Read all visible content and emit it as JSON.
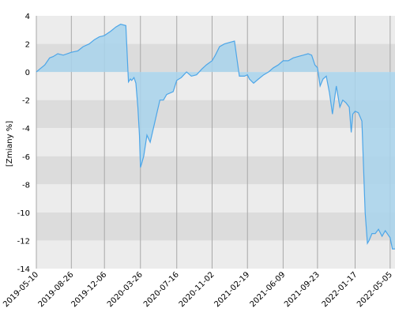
{
  "chart_data": {
    "type": "area",
    "ylabel": "[Zmiany %]",
    "ylim": [
      -14,
      4
    ],
    "y_ticks": [
      4,
      2,
      0,
      -2,
      -4,
      -6,
      -8,
      -10,
      -12,
      -14
    ],
    "x_ticks": [
      "2019-05-10",
      "2019-08-26",
      "2019-12-06",
      "2020-03-26",
      "2020-07-16",
      "2020-11-02",
      "2021-02-19",
      "2021-06-09",
      "2021-09-23",
      "2022-01-17",
      "2022-05-05"
    ],
    "xlim": [
      "2019-05-10",
      "2022-05-20"
    ],
    "grid": true,
    "colors": {
      "line": "#4da6e8",
      "fill": "#a8d4ec",
      "band_dark": "#dcdcdc",
      "band_light": "#ececec",
      "vgrid": "#a8a8a8"
    },
    "series": [
      {
        "x": [
          "2019-05-10",
          "2019-05-20",
          "2019-06-05",
          "2019-06-20",
          "2019-07-01",
          "2019-07-15",
          "2019-08-01",
          "2019-08-26",
          "2019-09-15",
          "2019-10-01",
          "2019-10-20",
          "2019-11-05",
          "2019-11-20",
          "2019-12-06",
          "2019-12-25",
          "2020-01-10",
          "2020-01-25",
          "2020-02-10",
          "2020-02-18",
          "2020-02-24",
          "2020-02-28",
          "2020-03-06",
          "2020-03-12",
          "2020-03-18",
          "2020-03-23",
          "2020-03-26",
          "2020-03-30",
          "2020-04-05",
          "2020-04-15",
          "2020-04-25",
          "2020-05-05",
          "2020-05-15",
          "2020-05-25",
          "2020-06-05",
          "2020-06-15",
          "2020-06-25",
          "2020-07-05",
          "2020-07-16",
          "2020-07-30",
          "2020-08-15",
          "2020-08-30",
          "2020-09-15",
          "2020-10-01",
          "2020-10-15",
          "2020-11-02",
          "2020-11-12",
          "2020-11-25",
          "2020-12-10",
          "2020-12-25",
          "2021-01-10",
          "2021-01-25",
          "2021-02-10",
          "2021-02-19",
          "2021-02-25",
          "2021-03-10",
          "2021-03-25",
          "2021-04-10",
          "2021-04-25",
          "2021-05-10",
          "2021-05-25",
          "2021-06-09",
          "2021-06-25",
          "2021-07-10",
          "2021-07-25",
          "2021-08-10",
          "2021-08-25",
          "2021-09-05",
          "2021-09-15",
          "2021-09-23",
          "2021-10-01",
          "2021-10-10",
          "2021-10-20",
          "2021-10-30",
          "2021-11-08",
          "2021-11-20",
          "2021-12-01",
          "2021-12-10",
          "2021-12-20",
          "2021-12-30",
          "2022-01-05",
          "2022-01-10",
          "2022-01-17",
          "2022-01-27",
          "2022-02-07",
          "2022-02-17",
          "2022-02-24",
          "2022-03-01",
          "2022-03-10",
          "2022-03-20",
          "2022-03-30",
          "2022-04-10",
          "2022-04-20",
          "2022-05-05",
          "2022-05-12",
          "2022-05-20"
        ],
        "values": [
          0,
          0.2,
          0.5,
          1.0,
          1.1,
          1.3,
          1.2,
          1.4,
          1.5,
          1.8,
          2.0,
          2.3,
          2.5,
          2.6,
          2.9,
          3.2,
          3.4,
          3.3,
          -0.7,
          -0.5,
          -0.6,
          -0.4,
          -0.8,
          -2.5,
          -4.5,
          -6.8,
          -6.5,
          -6.0,
          -4.5,
          -5.0,
          -4.0,
          -3.0,
          -2.0,
          -2.0,
          -1.6,
          -1.5,
          -1.4,
          -0.6,
          -0.4,
          0.0,
          -0.3,
          -0.2,
          0.2,
          0.5,
          0.8,
          1.2,
          1.8,
          2.0,
          2.1,
          2.2,
          -0.3,
          -0.3,
          -0.2,
          -0.5,
          -0.8,
          -0.5,
          -0.2,
          0.0,
          0.3,
          0.5,
          0.8,
          0.8,
          1.0,
          1.1,
          1.2,
          1.3,
          1.2,
          0.5,
          0.3,
          -1.0,
          -0.5,
          -0.3,
          -1.5,
          -3.0,
          -1.0,
          -2.5,
          -2.0,
          -2.2,
          -2.5,
          -4.3,
          -3.0,
          -2.8,
          -2.9,
          -3.5,
          -10.0,
          -12.2,
          -12.0,
          -11.5,
          -11.5,
          -11.2,
          -11.7,
          -11.3,
          -11.8,
          -12.6,
          -12.6
        ]
      }
    ]
  }
}
